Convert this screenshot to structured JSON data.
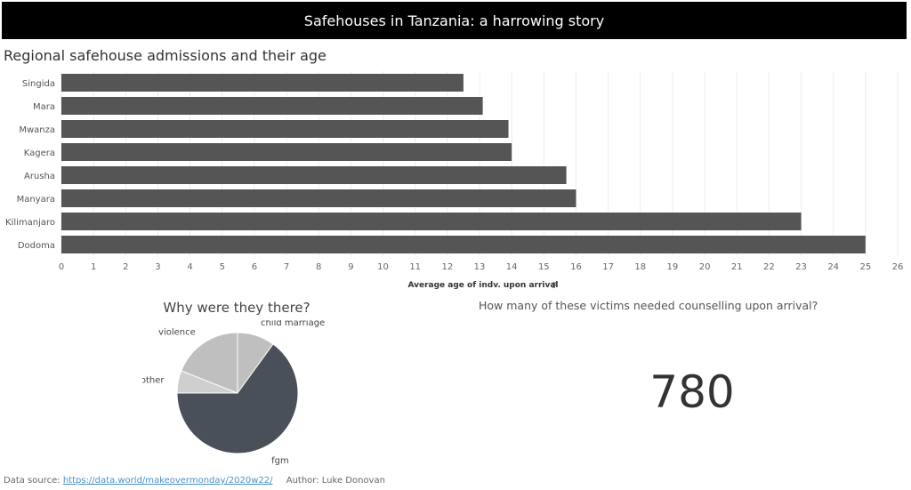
{
  "banner": {
    "title": "Safehouses in Tanzania: a harrowing story"
  },
  "bar_section": {
    "title": "Regional safehouse admissions and their age"
  },
  "pie_section": {
    "title": "Why were they there?"
  },
  "kpi": {
    "question": "How many of these victims needed counselling upon arrival?",
    "value": "780"
  },
  "footer": {
    "source_label": "Data source:",
    "source_link": "https://data.world/makeovermonday/2020w22/",
    "author": "Author: Luke Donovan"
  },
  "colors": {
    "bar": "#555555",
    "pie_fgm": "#4a505a",
    "pie_light": "#bfbfbf",
    "pie_lighter": "#cfcfcf",
    "banner": "#000000"
  },
  "chart_data": [
    {
      "type": "bar",
      "orientation": "horizontal",
      "title": "Regional safehouse admissions and their age",
      "xlabel": "Average age of indv. upon arrival",
      "categories": [
        "Singida",
        "Mara",
        "Mwanza",
        "Kagera",
        "Arusha",
        "Manyara",
        "Kilimanjaro",
        "Dodoma"
      ],
      "values": [
        12.5,
        13.1,
        13.9,
        14.0,
        15.7,
        16.0,
        23.0,
        25.0
      ],
      "xlim": [
        0,
        26
      ],
      "xticks": [
        "0",
        "1",
        "2",
        "3",
        "4",
        "5",
        "6",
        "7",
        "8",
        "9",
        "10",
        "11",
        "12",
        "13",
        "14",
        "15",
        "16",
        "17",
        "18",
        "19",
        "20",
        "21",
        "22",
        "23",
        "24",
        "25",
        "26"
      ],
      "grid": true,
      "sorted": "ascending"
    },
    {
      "type": "pie",
      "title": "Why were they there?",
      "slices": [
        {
          "label": "child marriage",
          "value": 10
        },
        {
          "label": "fgm",
          "value": 65
        },
        {
          "label": "other",
          "value": 6
        },
        {
          "label": "violence",
          "value": 19
        }
      ]
    }
  ]
}
